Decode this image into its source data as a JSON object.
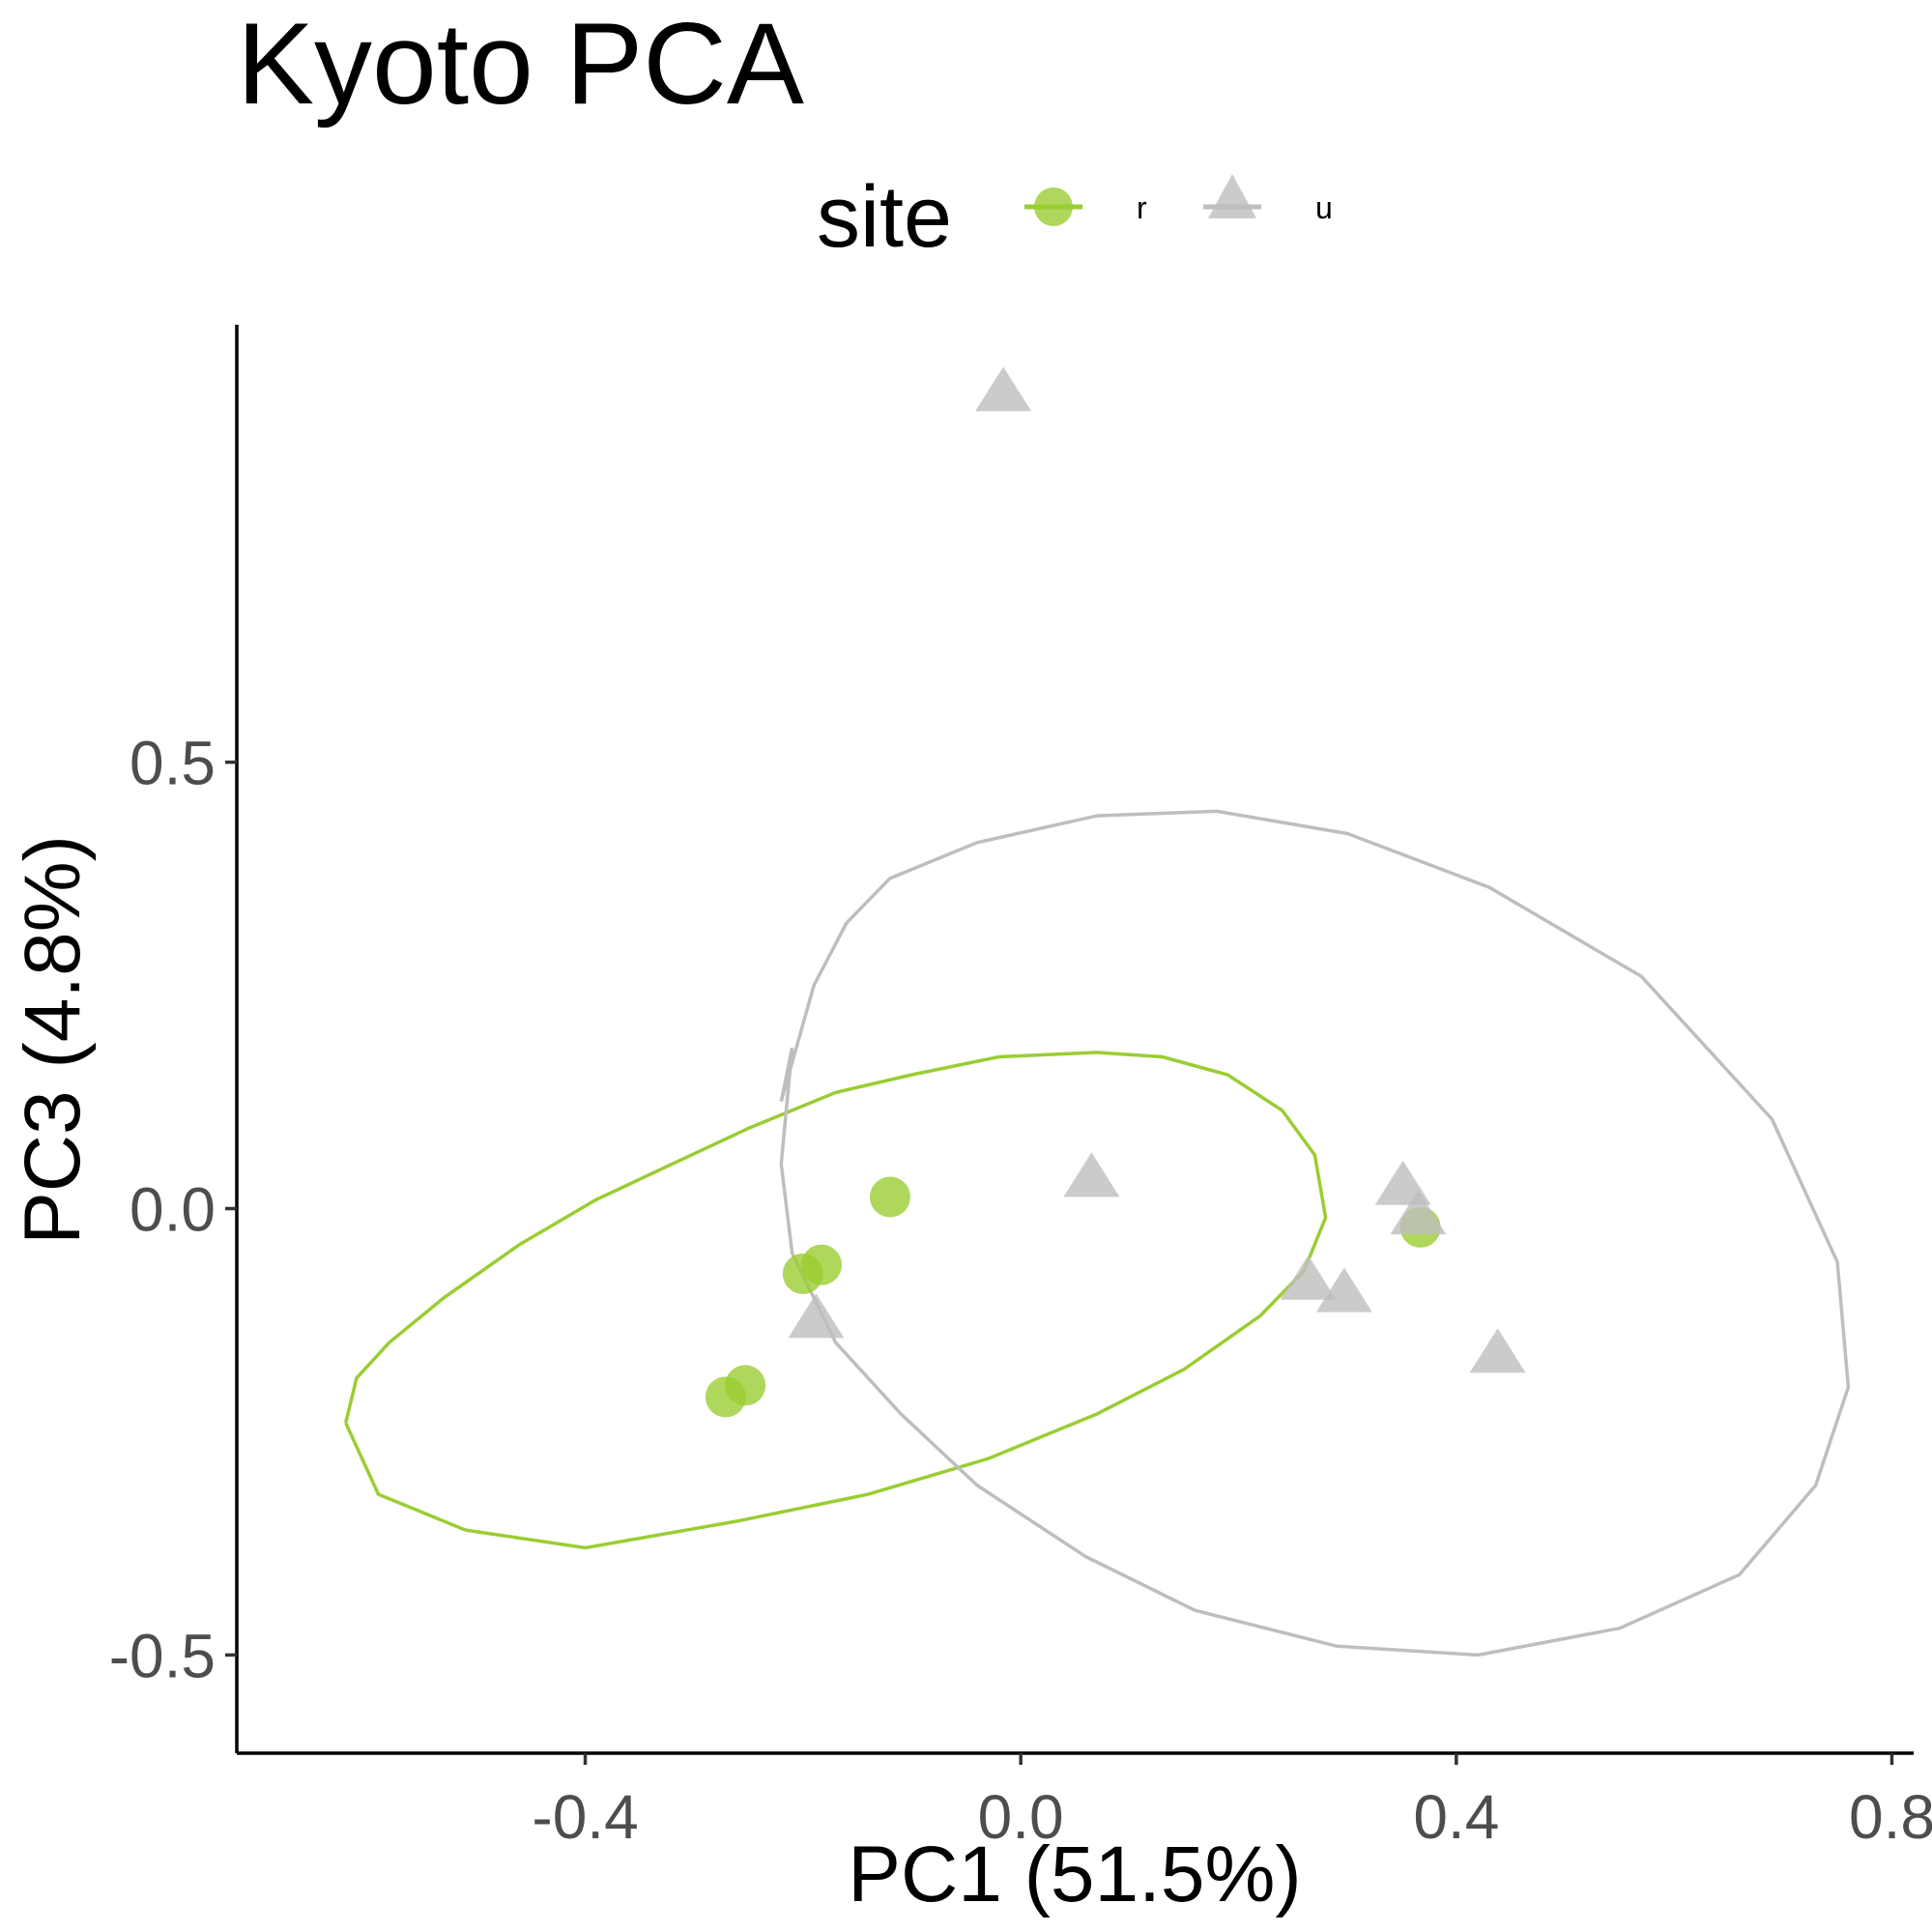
{
  "chart_data": {
    "type": "scatter",
    "title": "Kyoto PCA",
    "xlabel": "PC1 (51.5%)",
    "ylabel": "PC3 (4.8%)",
    "xlim": [
      -0.72,
      0.82
    ],
    "ylim": [
      -0.61,
      0.99
    ],
    "xticks": [
      -0.4,
      0.0,
      0.4,
      0.8
    ],
    "xtick_labels": [
      "-0.4",
      "0.0",
      "0.4",
      "0.8"
    ],
    "yticks": [
      -0.5,
      0.0,
      0.5
    ],
    "ytick_labels": [
      "-0.5",
      "0.0",
      "0.5"
    ],
    "grid": false,
    "legend": {
      "title": "site",
      "position": "top"
    },
    "series": [
      {
        "name": "r",
        "marker": "circle",
        "color": "#9acd32",
        "x": [
          -0.12,
          -0.183,
          -0.2,
          -0.253,
          -0.271,
          0.367
        ],
        "y": [
          0.013,
          -0.063,
          -0.073,
          -0.198,
          -0.211,
          -0.021
        ]
      },
      {
        "name": "u",
        "marker": "triangle",
        "color": "#bebebe",
        "x": [
          -0.016,
          0.065,
          -0.188,
          0.351,
          0.365,
          0.264,
          0.297,
          0.438
        ],
        "y": [
          0.91,
          0.03,
          -0.128,
          0.021,
          -0.012,
          -0.085,
          -0.099,
          -0.167
        ]
      }
    ],
    "ellipses": [
      {
        "series": "r",
        "color": "#9acd32",
        "x": [
          -0.62,
          -0.61,
          -0.58,
          -0.53,
          -0.46,
          -0.39,
          -0.32,
          -0.25,
          -0.17,
          -0.1,
          -0.02,
          0.07,
          0.13,
          0.19,
          0.24,
          0.27,
          0.28,
          0.26,
          0.22,
          0.15,
          0.07,
          -0.03,
          -0.14,
          -0.26,
          -0.4,
          -0.51,
          -0.59,
          -0.62
        ],
        "y": [
          -0.24,
          -0.19,
          -0.15,
          -0.1,
          -0.04,
          0.01,
          0.05,
          0.09,
          0.13,
          0.15,
          0.17,
          0.175,
          0.17,
          0.15,
          0.11,
          0.06,
          -0.01,
          -0.07,
          -0.12,
          -0.18,
          -0.23,
          -0.28,
          -0.32,
          -0.35,
          -0.38,
          -0.36,
          -0.32,
          -0.24
        ]
      },
      {
        "series": "u",
        "color": "#bebebe",
        "x": [
          -0.22,
          -0.21,
          -0.22,
          -0.19,
          -0.16,
          -0.12,
          -0.04,
          0.07,
          0.18,
          0.3,
          0.43,
          0.57,
          0.69,
          0.75,
          0.76,
          0.73,
          0.66,
          0.55,
          0.42,
          0.29,
          0.16,
          0.06,
          -0.04,
          -0.11,
          -0.17,
          -0.21,
          -0.22
        ],
        "y": [
          0.05,
          0.18,
          0.12,
          0.25,
          0.32,
          0.37,
          0.41,
          0.44,
          0.445,
          0.42,
          0.36,
          0.26,
          0.1,
          -0.06,
          -0.2,
          -0.31,
          -0.41,
          -0.47,
          -0.5,
          -0.49,
          -0.45,
          -0.39,
          -0.31,
          -0.23,
          -0.15,
          -0.05,
          0.05
        ]
      }
    ]
  }
}
